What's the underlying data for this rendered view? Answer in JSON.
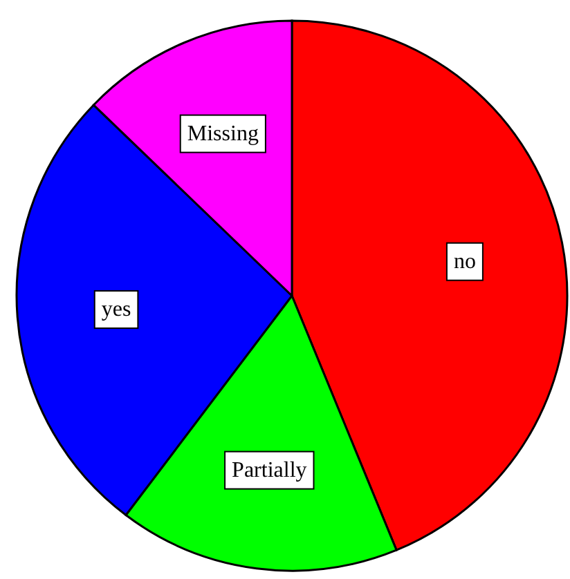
{
  "chart_data": {
    "type": "pie",
    "categories": [
      "no",
      "Partially",
      "yes",
      "Missing"
    ],
    "values": [
      43.8,
      16.5,
      26.9,
      12.8
    ],
    "colors": [
      "#ff0000",
      "#00ff00",
      "#0000ff",
      "#ff00ff"
    ]
  }
}
